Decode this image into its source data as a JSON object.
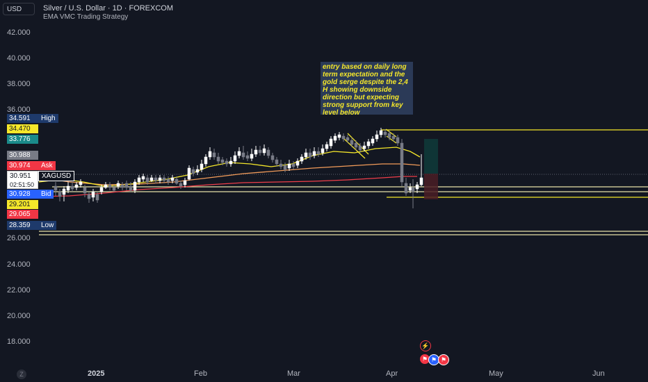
{
  "header": {
    "currency": "USD",
    "title": "Silver / U.S. Dollar · 1D · FOREXCOM",
    "strategy": "EMA VMC Trading Strategy"
  },
  "price_axis": [
    "42.000",
    "40.000",
    "38.000",
    "36.000",
    "26.000",
    "24.000",
    "22.000",
    "20.000",
    "18.000"
  ],
  "time_axis": [
    "2025",
    "Feb",
    "Mar",
    "Apr",
    "May",
    "Jun"
  ],
  "tags": {
    "high_value": "34.591",
    "high_name": "High",
    "t1": "34.470",
    "t2": "33.776",
    "t3": "30.988",
    "ask_value": "30.974",
    "ask_name": "Ask",
    "last_value": "30.951",
    "last_symbol": "XAGUSD",
    "countdown": "02:51:50",
    "bid_value": "30.928",
    "bid_name": "Bid",
    "t4": "29.201",
    "t5": "29.065",
    "low_value": "28.359",
    "low_name": "Low"
  },
  "annotation": "entry based on daily long term expectation and the gold serge despite the 2,4 H showing downside direction but expecting strong support from key level below",
  "colors": {
    "background": "#131722",
    "up_candle": "#ffffff",
    "down_candle": "#787b86",
    "ema_fast": "#f5e72a",
    "ema_mid": "#f39c5a",
    "ema_slow": "#ef3e4a",
    "level_line": "#f5e72a",
    "ask": "#f23645",
    "bid": "#2962ff"
  },
  "icons": {
    "zoom": "Z",
    "event_lightning": "lightning-icon",
    "event_flag": "us-flag-icon"
  }
}
